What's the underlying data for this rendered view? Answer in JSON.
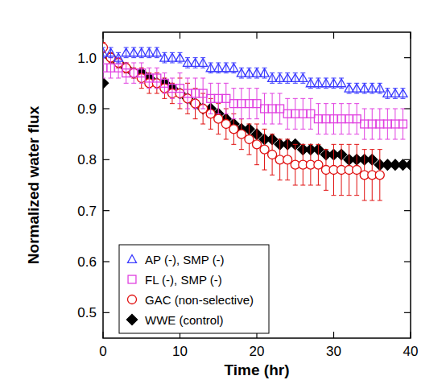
{
  "chart_data": {
    "type": "line",
    "x_label": "Time (hr)",
    "y_label": "Normalized water flux",
    "xlim": [
      0,
      40
    ],
    "xticks": [
      0,
      10,
      20,
      30,
      40
    ],
    "ylim": [
      0.45,
      1.05
    ],
    "yticks": [
      0.5,
      0.6,
      0.7,
      0.8,
      0.9,
      {
        "value": 1.0,
        "label": "1.0"
      }
    ],
    "legend": "lower left",
    "series": [
      {
        "name": "AP (-), SMP (-)",
        "color": "#3a3aff",
        "marker": "triangle",
        "x": [
          0,
          1,
          2,
          3,
          4,
          5,
          6,
          7,
          8,
          9,
          10,
          11,
          12,
          13,
          14,
          15,
          16,
          17,
          18,
          19,
          20,
          21,
          22,
          23,
          24,
          25,
          26,
          27,
          28,
          29,
          30,
          31,
          32,
          33,
          34,
          35,
          36,
          37,
          38,
          39
        ],
        "values": [
          1.01,
          1.01,
          1.0,
          1.01,
          1.01,
          1.01,
          1.01,
          1.01,
          1.0,
          1.0,
          1.0,
          0.99,
          0.99,
          0.99,
          0.98,
          0.98,
          0.98,
          0.98,
          0.97,
          0.97,
          0.97,
          0.97,
          0.96,
          0.96,
          0.96,
          0.96,
          0.96,
          0.95,
          0.95,
          0.95,
          0.95,
          0.95,
          0.94,
          0.94,
          0.94,
          0.94,
          0.94,
          0.93,
          0.93,
          0.93
        ],
        "errors": [
          0.01,
          0.01,
          0.01,
          0.01,
          0.01,
          0.01,
          0.01,
          0.01,
          0.01,
          0.01,
          0.01,
          0.01,
          0.01,
          0.01,
          0.01,
          0.01,
          0.01,
          0.01,
          0.01,
          0.01,
          0.01,
          0.01,
          0.01,
          0.01,
          0.01,
          0.01,
          0.01,
          0.01,
          0.01,
          0.01,
          0.01,
          0.01,
          0.01,
          0.01,
          0.01,
          0.01,
          0.01,
          0.01,
          0.01,
          0.01
        ]
      },
      {
        "name": "FL (-), SMP (-)",
        "color": "#e040e0",
        "marker": "square",
        "x": [
          0,
          1,
          2,
          3,
          4,
          5,
          6,
          7,
          8,
          9,
          10,
          11,
          12,
          13,
          14,
          15,
          16,
          17,
          18,
          19,
          20,
          21,
          22,
          23,
          24,
          25,
          26,
          27,
          28,
          29,
          30,
          31,
          32,
          33,
          34,
          35,
          36,
          37,
          38,
          39
        ],
        "values": [
          0.98,
          0.98,
          0.98,
          0.97,
          0.97,
          0.97,
          0.96,
          0.96,
          0.95,
          0.94,
          0.94,
          0.93,
          0.93,
          0.93,
          0.92,
          0.92,
          0.92,
          0.91,
          0.91,
          0.91,
          0.91,
          0.9,
          0.9,
          0.9,
          0.89,
          0.89,
          0.89,
          0.89,
          0.88,
          0.88,
          0.88,
          0.88,
          0.88,
          0.88,
          0.87,
          0.87,
          0.87,
          0.87,
          0.87,
          0.87
        ],
        "errors": [
          0.02,
          0.02,
          0.02,
          0.02,
          0.02,
          0.02,
          0.02,
          0.02,
          0.02,
          0.02,
          0.03,
          0.03,
          0.03,
          0.03,
          0.03,
          0.03,
          0.03,
          0.03,
          0.03,
          0.03,
          0.03,
          0.03,
          0.03,
          0.03,
          0.03,
          0.03,
          0.03,
          0.03,
          0.03,
          0.03,
          0.03,
          0.03,
          0.03,
          0.03,
          0.03,
          0.03,
          0.03,
          0.03,
          0.03,
          0.03
        ]
      },
      {
        "name": "GAC (non-selective)",
        "color": "#e01010",
        "marker": "circle",
        "x": [
          0,
          1,
          2,
          3,
          4,
          5,
          6,
          7,
          8,
          9,
          10,
          11,
          12,
          13,
          14,
          15,
          16,
          17,
          18,
          19,
          20,
          21,
          22,
          23,
          24,
          25,
          26,
          27,
          28,
          29,
          30,
          31,
          32,
          33,
          34,
          35,
          36
        ],
        "values": [
          1.02,
          1.0,
          0.99,
          0.98,
          0.97,
          0.96,
          0.95,
          0.95,
          0.94,
          0.93,
          0.93,
          0.92,
          0.91,
          0.9,
          0.89,
          0.88,
          0.87,
          0.86,
          0.85,
          0.84,
          0.83,
          0.82,
          0.81,
          0.8,
          0.8,
          0.79,
          0.79,
          0.79,
          0.79,
          0.78,
          0.78,
          0.78,
          0.78,
          0.78,
          0.77,
          0.77,
          0.77
        ],
        "errors": [
          0.01,
          0.01,
          0.01,
          0.01,
          0.01,
          0.02,
          0.02,
          0.02,
          0.02,
          0.02,
          0.03,
          0.03,
          0.03,
          0.03,
          0.03,
          0.03,
          0.03,
          0.03,
          0.03,
          0.03,
          0.04,
          0.04,
          0.04,
          0.04,
          0.04,
          0.04,
          0.04,
          0.04,
          0.04,
          0.04,
          0.05,
          0.05,
          0.05,
          0.05,
          0.05,
          0.05,
          0.05
        ]
      },
      {
        "name": "WWE (control)",
        "color": "#000000",
        "marker": "diamond",
        "x": [
          0,
          1,
          2,
          3,
          4,
          5,
          6,
          7,
          8,
          9,
          10,
          11,
          12,
          13,
          14,
          15,
          16,
          17,
          18,
          19,
          20,
          21,
          22,
          23,
          24,
          25,
          26,
          27,
          28,
          29,
          30,
          31,
          32,
          33,
          34,
          35,
          36,
          37,
          38,
          39,
          40
        ],
        "values": [
          0.95,
          1.0,
          0.99,
          0.98,
          0.97,
          0.97,
          0.96,
          0.95,
          0.95,
          0.94,
          0.93,
          0.92,
          0.91,
          0.9,
          0.9,
          0.89,
          0.88,
          0.87,
          0.86,
          0.86,
          0.85,
          0.84,
          0.84,
          0.83,
          0.83,
          0.83,
          0.82,
          0.82,
          0.82,
          0.81,
          0.81,
          0.81,
          0.8,
          0.8,
          0.8,
          0.8,
          0.79,
          0.79,
          0.79,
          0.79,
          0.79
        ]
      }
    ]
  }
}
